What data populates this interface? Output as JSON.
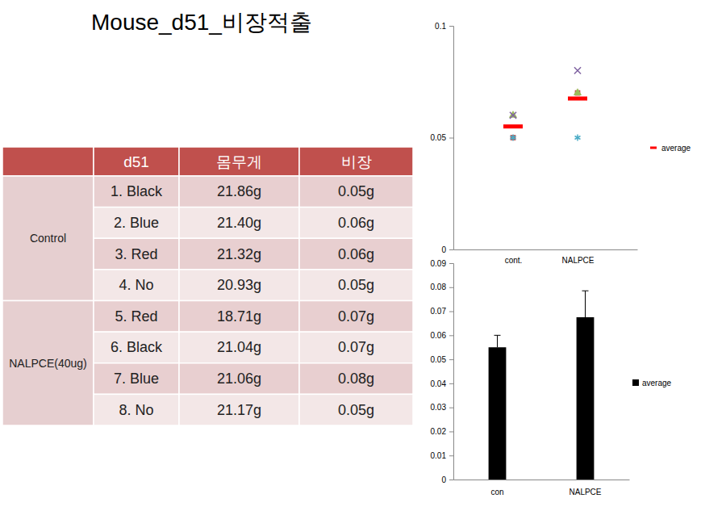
{
  "title": "Mouse_d51_비장적출",
  "table": {
    "header": [
      "d51",
      "몸무게",
      "비장"
    ],
    "groups": [
      {
        "label": "Control",
        "rows": [
          [
            "1. Black",
            "21.86g",
            "0.05g"
          ],
          [
            "2. Blue",
            "21.40g",
            "0.06g"
          ],
          [
            "3. Red",
            "21.32g",
            "0.06g"
          ],
          [
            "4. No",
            "20.93g",
            "0.05g"
          ]
        ]
      },
      {
        "label": "NALPCE(40ug)",
        "rows": [
          [
            "5. Red",
            "18.71g",
            "0.07g"
          ],
          [
            "6. Black",
            "21.04g",
            "0.07g"
          ],
          [
            "7. Blue",
            "21.06g",
            "0.08g"
          ],
          [
            "8. No",
            "21.17g",
            "0.05g"
          ]
        ]
      }
    ]
  },
  "chart_data": [
    {
      "type": "scatter",
      "categories": [
        "cont.",
        "NALPCE"
      ],
      "series": [
        {
          "color": "#C0504D",
          "marker": "square",
          "values": [
            0.05,
            0.07
          ]
        },
        {
          "color": "#9BBB59",
          "marker": "triangle",
          "values": [
            0.06,
            0.07
          ]
        },
        {
          "color": "#8064A2",
          "marker": "x",
          "values": [
            0.06,
            0.08
          ]
        },
        {
          "color": "#4BACC6",
          "marker": "asterisk",
          "values": [
            0.05,
            0.05
          ]
        },
        {
          "name": "average",
          "color": "#FF0000",
          "marker": "dash",
          "values": [
            0.055,
            0.0675
          ]
        }
      ],
      "ylim": [
        0,
        0.1
      ],
      "yticks": [
        0,
        0.05,
        0.1
      ],
      "grid": false,
      "legend": "right"
    },
    {
      "type": "bar",
      "categories": [
        "con",
        "NALPCE"
      ],
      "series": [
        {
          "name": "average",
          "color": "#000000",
          "values": [
            0.055,
            0.0675
          ],
          "errors": [
            0.005,
            0.011
          ]
        }
      ],
      "ylim": [
        0,
        0.09
      ],
      "yticks": [
        0,
        0.01,
        0.02,
        0.03,
        0.04,
        0.05,
        0.06,
        0.07,
        0.08,
        0.09
      ],
      "grid": false,
      "legend": "right"
    }
  ]
}
